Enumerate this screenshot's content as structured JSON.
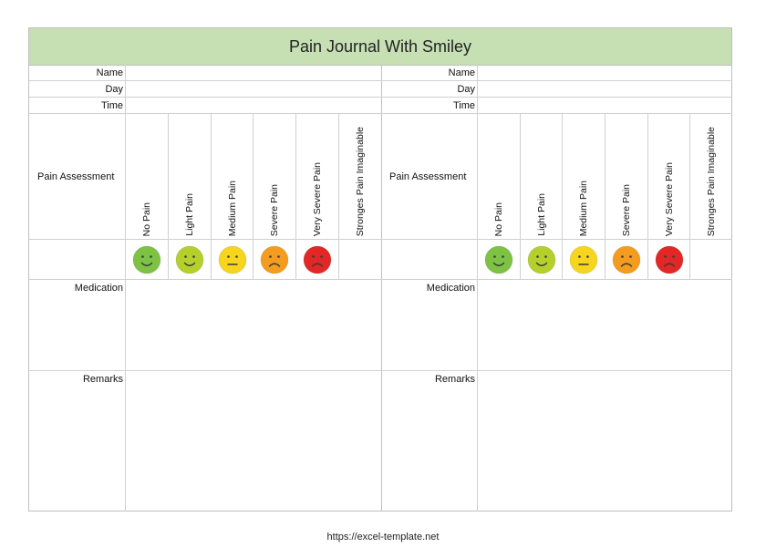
{
  "title": "Pain Journal With Smiley",
  "labels": {
    "name": "Name",
    "day": "Day",
    "time": "Time",
    "pain_assessment": "Pain Assessment",
    "medication": "Medication",
    "remarks": "Remarks"
  },
  "scale": [
    {
      "label": "No Pain",
      "face_color": "#7dc242",
      "mouth": "smile",
      "icon": "very-happy-face-icon"
    },
    {
      "label": "Light Pain",
      "face_color": "#b5cf2b",
      "mouth": "smile",
      "icon": "happy-face-icon"
    },
    {
      "label": "Medium Pain",
      "face_color": "#f7d51e",
      "mouth": "flat",
      "icon": "neutral-face-icon"
    },
    {
      "label": "Severe Pain",
      "face_color": "#f39c1f",
      "mouth": "frown",
      "icon": "sad-face-icon"
    },
    {
      "label": "Very Severe Pain",
      "face_color": "#e32727",
      "mouth": "frown",
      "icon": "very-sad-face-icon"
    },
    {
      "label": "Stronges Pain Imaginable",
      "face_color": "",
      "mouth": "",
      "icon": ""
    }
  ],
  "footer": "https://excel-template.net"
}
